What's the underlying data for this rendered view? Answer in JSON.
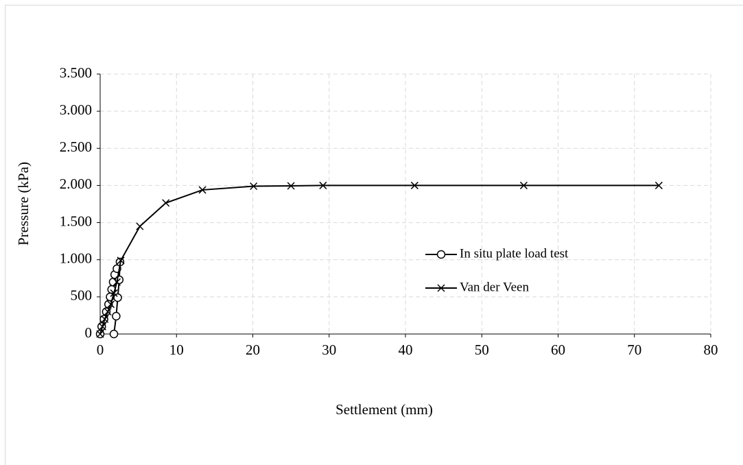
{
  "chart_data": {
    "type": "line",
    "xlabel": "Settlement (mm)",
    "ylabel": "Pressure (kPa)",
    "xlim": [
      0,
      80
    ],
    "xticks": [
      0,
      10,
      20,
      30,
      40,
      50,
      60,
      70,
      80
    ],
    "ylim": [
      0,
      3500
    ],
    "yticks": [
      0,
      500,
      {
        "value": 1000,
        "label": "1.000"
      },
      {
        "value": 1500,
        "label": "1.500"
      },
      {
        "value": 2000,
        "label": "2.000"
      },
      {
        "value": 2500,
        "label": "2.500"
      },
      {
        "value": 3000,
        "label": "3.000"
      },
      {
        "value": 3500,
        "label": "3.500"
      }
    ],
    "grid": true,
    "legend": "right",
    "series": [
      {
        "name": "In situ plate load test",
        "color": "#000000",
        "marker": "o",
        "x": [
          0,
          0.2,
          0.5,
          0.8,
          1.1,
          1.3,
          1.5,
          1.7,
          1.9,
          2.2,
          2.6,
          2.5,
          2.3,
          2.1,
          1.8
        ],
        "values": [
          0,
          100,
          200,
          300,
          400,
          500,
          600,
          700,
          800,
          880,
          970,
          730,
          490,
          240,
          0
        ]
      },
      {
        "name": "Van der Veen",
        "color": "#000000",
        "marker": "x",
        "x": [
          0,
          0.3,
          0.6,
          1,
          1.4,
          1.8,
          2.2,
          2.7,
          5.2,
          8.6,
          13.4,
          20.1,
          25,
          29.2,
          41.2,
          55.5,
          73.2
        ],
        "values": [
          0,
          100,
          200,
          300,
          400,
          550,
          700,
          990,
          1450,
          1765,
          1940,
          1990,
          1995,
          2000,
          2000,
          2000,
          2000
        ]
      }
    ]
  }
}
